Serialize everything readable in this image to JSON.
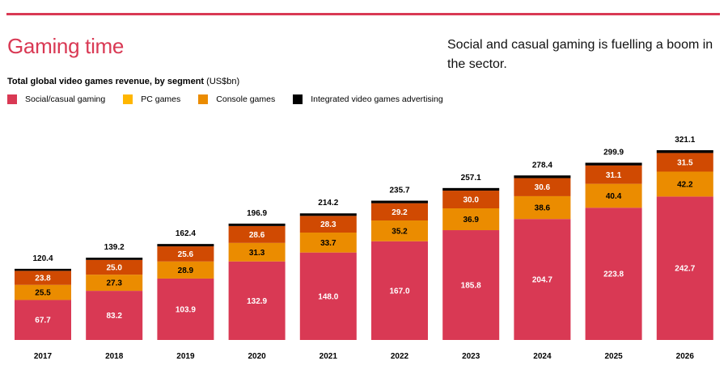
{
  "page": {
    "title": "Gaming time",
    "blurb": "Social and casual gaming is fuelling a boom in the sector.",
    "subtitle_bold": "Total global video games revenue, by segment",
    "subtitle_unit": " (US$bn)",
    "accent_color": "#d93954"
  },
  "legend": [
    {
      "label": "Social/casual gaming",
      "color": "#d93954"
    },
    {
      "label": "PC games",
      "color": "#ffb600"
    },
    {
      "label": "Console games",
      "color": "#eb8c00"
    },
    {
      "label": "Integrated video games advertising",
      "color": "#000000"
    }
  ],
  "chart_data": {
    "type": "bar",
    "stacked": true,
    "title": "Total global video games revenue, by segment (US$bn)",
    "xlabel": "",
    "ylabel": "",
    "ylim": [
      0,
      321.1
    ],
    "grid": false,
    "legend_position": "top-left",
    "categories": [
      "2017",
      "2018",
      "2019",
      "2020",
      "2021",
      "2022",
      "2023",
      "2024",
      "2025",
      "2026"
    ],
    "series": [
      {
        "name": "Social/casual gaming",
        "bar_color": "#d93954",
        "label_color": "#ffffff",
        "values": [
          67.7,
          83.2,
          103.9,
          132.9,
          148.0,
          167.0,
          185.8,
          204.7,
          223.8,
          242.7
        ]
      },
      {
        "name": "PC games",
        "bar_color": "#eb8c00",
        "label_color": "#000000",
        "values": [
          25.5,
          27.3,
          28.9,
          31.3,
          33.7,
          35.2,
          36.9,
          38.6,
          40.4,
          42.2
        ]
      },
      {
        "name": "Console games",
        "bar_color": "#d04a02",
        "label_color": "#ffffff",
        "values": [
          23.8,
          25.0,
          25.6,
          28.6,
          28.3,
          29.2,
          30.0,
          30.6,
          31.1,
          31.5
        ]
      },
      {
        "name": "Integrated video games advertising",
        "bar_color": "#000000",
        "label_color": null,
        "values": [
          3.4,
          3.7,
          4.0,
          4.1,
          4.2,
          4.3,
          4.4,
          4.5,
          4.6,
          4.7
        ],
        "show_labels": false
      }
    ],
    "totals": [
      120.4,
      139.2,
      162.4,
      196.9,
      214.2,
      235.7,
      257.1,
      278.4,
      299.9,
      321.1
    ],
    "value_labels": {
      "social": [
        "67.7",
        "83.2",
        "103.9",
        "132.9",
        "148.0",
        "167.0",
        "185.8",
        "204.7",
        "223.8",
        "242.7"
      ],
      "pc": [
        "25.5",
        "27.3",
        "28.9",
        "31.3",
        "33.7",
        "35.2",
        "36.9",
        "38.6",
        "40.4",
        "42.2"
      ],
      "console": [
        "23.8",
        "25.0",
        "25.6",
        "28.6",
        "28.3",
        "29.2",
        "30.0",
        "30.6",
        "31.1",
        "31.5"
      ],
      "totals": [
        "120.4",
        "139.2",
        "162.4",
        "196.9",
        "214.2",
        "235.7",
        "257.1",
        "278.4",
        "299.9",
        "321.1"
      ]
    }
  }
}
